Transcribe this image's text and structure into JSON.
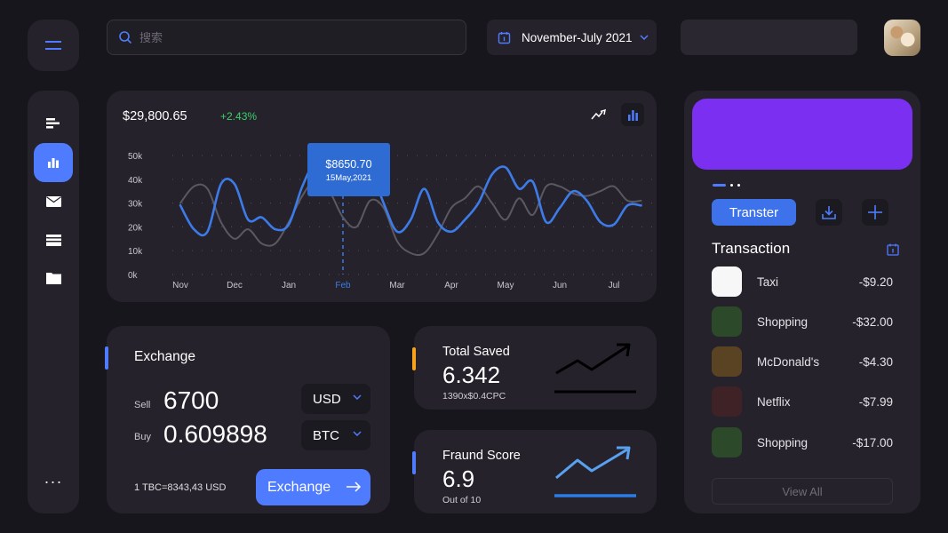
{
  "search": {
    "placeholder": "搜索"
  },
  "date_range": {
    "label": "November-July 2021"
  },
  "sidebar": {
    "items": [
      {
        "icon": "list-icon"
      },
      {
        "icon": "bar-chart-icon",
        "active": true
      },
      {
        "icon": "mail-icon"
      },
      {
        "icon": "credit-card-icon"
      },
      {
        "icon": "folder-icon"
      }
    ],
    "more_label": "···"
  },
  "overview": {
    "balance": "$29,800.65",
    "change": "+2.43%",
    "tooltip_value": "$8650.70",
    "tooltip_date": "15May,2021"
  },
  "chart_data": {
    "type": "line",
    "y_ticks": [
      "50k",
      "40k",
      "30k",
      "20k",
      "10k",
      "0k"
    ],
    "ylim": [
      0,
      50000
    ],
    "categories": [
      "Nov",
      "Dec",
      "Jan",
      "Feb",
      "Mar",
      "Apr",
      "May",
      "Jun",
      "Jul"
    ],
    "highlighted_category": "Feb",
    "x": [
      0,
      0.25,
      0.5,
      0.75,
      1.0,
      1.25,
      1.5,
      1.75,
      2.0,
      2.25,
      2.5,
      2.75,
      3.0,
      3.25,
      3.5,
      3.75,
      4.0,
      4.25,
      4.5,
      4.75,
      5.0,
      5.25,
      5.5,
      5.75,
      6.0,
      6.25,
      6.5,
      6.75,
      7.0,
      7.25,
      7.5,
      7.75,
      8.0,
      8.25,
      8.5
    ],
    "series": [
      {
        "color": "#3d7be8",
        "values": [
          29000,
          19000,
          18000,
          38000,
          38000,
          23000,
          24000,
          19000,
          21000,
          37000,
          47000,
          40000,
          48000,
          53000,
          45000,
          30000,
          18000,
          23000,
          36000,
          22000,
          18000,
          23000,
          30000,
          42000,
          45000,
          36000,
          39000,
          22000,
          28000,
          35000,
          31000,
          22000,
          21000,
          29000,
          29000
        ]
      },
      {
        "color": "#5a5860",
        "values": [
          30000,
          37000,
          36000,
          22000,
          15000,
          19000,
          13000,
          13000,
          22000,
          33000,
          40000,
          35000,
          24000,
          20000,
          31000,
          28000,
          14000,
          9000,
          9000,
          17000,
          28000,
          32000,
          37000,
          30000,
          23000,
          32000,
          25000,
          37000,
          37000,
          34000,
          33000,
          35000,
          37000,
          31000,
          31000
        ]
      }
    ]
  },
  "exchange": {
    "title": "Exchange",
    "sell_label": "Sell",
    "sell_amount": "6700",
    "sell_currency": "USD",
    "buy_label": "Buy",
    "buy_amount": "0.609898",
    "buy_currency": "BTC",
    "rate": "1 TBC=8343,43 USD",
    "button_label": "Exchange"
  },
  "total_saved": {
    "title": "Total Saved",
    "value": "6.342",
    "sub": "1390x$0.4CPC",
    "accent_color": "#f7a21b"
  },
  "fraud_score": {
    "title": "Fraund Score",
    "value": "6.9",
    "sub": "Out of 10",
    "accent_color": "#4f7cff"
  },
  "wallet": {
    "card_color": "#7b2ff0",
    "transfer_label": "Transter",
    "transaction_title": "Transaction",
    "transactions": [
      {
        "name": "Taxi",
        "amount": "-$9.20",
        "color": "#f7f7f7"
      },
      {
        "name": "Shopping",
        "amount": "-$32.00",
        "color": "#2c4a2a"
      },
      {
        "name": "McDonald's",
        "amount": "-$4.30",
        "color": "#5a4322"
      },
      {
        "name": "Netflix",
        "amount": "-$7.99",
        "color": "#3f2226"
      },
      {
        "name": "Shopping",
        "amount": "-$17.00",
        "color": "#2c4a2a"
      }
    ],
    "view_all_label": "View All"
  }
}
